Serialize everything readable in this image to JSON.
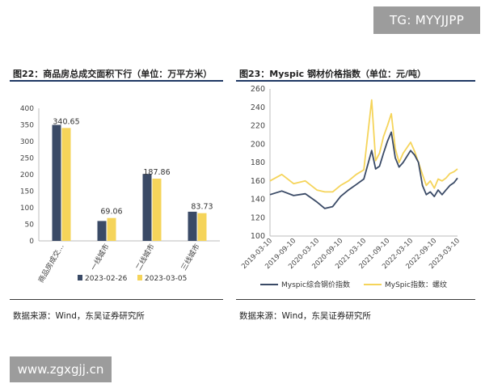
{
  "watermarks": {
    "top": "TG: MYYJJPP",
    "bottom": "www.zgxgjj.cn"
  },
  "left_figure": {
    "title": "图22：商品房总成交面积下行（单位：万平方米）",
    "source": "数据来源：Wind，东吴证券研究所"
  },
  "right_figure": {
    "title": "图23：Myspic 钢材价格指数（单位：元/吨）",
    "source": "数据来源：Wind，东吴证券研究所"
  },
  "colors": {
    "navy": "#3a4a66",
    "yellow": "#f5d45a",
    "rule": "#1f3864"
  },
  "chart_data": [
    {
      "type": "bar",
      "title": "",
      "categories": [
        "商品房成交...",
        "一线城市",
        "二线城市",
        "三线城市"
      ],
      "series": [
        {
          "name": "2023-02-26",
          "color": "#3a4a66",
          "values": [
            350,
            60,
            202,
            88
          ]
        },
        {
          "name": "2023-03-05",
          "color": "#f5d45a",
          "values": [
            340.65,
            69.06,
            187.86,
            83.73
          ]
        }
      ],
      "data_labels": [
        "340.65",
        "69.06",
        "187.86",
        "83.73"
      ],
      "ylim": [
        0,
        400
      ],
      "yticks": [
        0,
        50,
        100,
        150,
        200,
        250,
        300,
        350,
        400
      ],
      "legend": "bottom",
      "grid": false
    },
    {
      "type": "line",
      "title": "",
      "x_dates": [
        "2019-03-10",
        "2019-06-10",
        "2019-09-10",
        "2019-12-10",
        "2020-03-10",
        "2020-05-10",
        "2020-07-10",
        "2020-09-10",
        "2020-11-10",
        "2021-01-10",
        "2021-03-10",
        "2021-05-10",
        "2021-06-10",
        "2021-07-10",
        "2021-08-10",
        "2021-09-10",
        "2021-10-10",
        "2021-11-10",
        "2021-12-10",
        "2022-01-10",
        "2022-03-10",
        "2022-04-10",
        "2022-05-10",
        "2022-06-10",
        "2022-07-10",
        "2022-08-10",
        "2022-09-10",
        "2022-10-10",
        "2022-11-10",
        "2022-12-10",
        "2023-01-10",
        "2023-02-10",
        "2023-03-10"
      ],
      "series": [
        {
          "name": "Myspic综合钢价指数",
          "color": "#3a4a66",
          "values": [
            145,
            149,
            144,
            146,
            137,
            130,
            132,
            143,
            150,
            156,
            162,
            193,
            173,
            176,
            190,
            203,
            213,
            185,
            175,
            180,
            193,
            188,
            180,
            155,
            145,
            148,
            143,
            150,
            145,
            150,
            155,
            158,
            163
          ]
        },
        {
          "name": "MySpic指数：螺纹",
          "color": "#f5d45a",
          "values": [
            160,
            167,
            157,
            160,
            150,
            148,
            148,
            155,
            160,
            167,
            172,
            248,
            182,
            190,
            208,
            220,
            233,
            195,
            180,
            190,
            202,
            192,
            180,
            167,
            155,
            160,
            152,
            162,
            160,
            163,
            168,
            170,
            173
          ]
        }
      ],
      "x_tick_labels": [
        "2019-03-10",
        "2019-09-10",
        "2020-03-10",
        "2020-09-10",
        "2021-03-10",
        "2021-09-10",
        "2022-03-10",
        "2022-09-10",
        "2023-03-10"
      ],
      "ylim": [
        100,
        260
      ],
      "yticks": [
        100,
        120,
        140,
        160,
        180,
        200,
        220,
        240,
        260
      ],
      "legend": "bottom",
      "grid": false
    }
  ]
}
